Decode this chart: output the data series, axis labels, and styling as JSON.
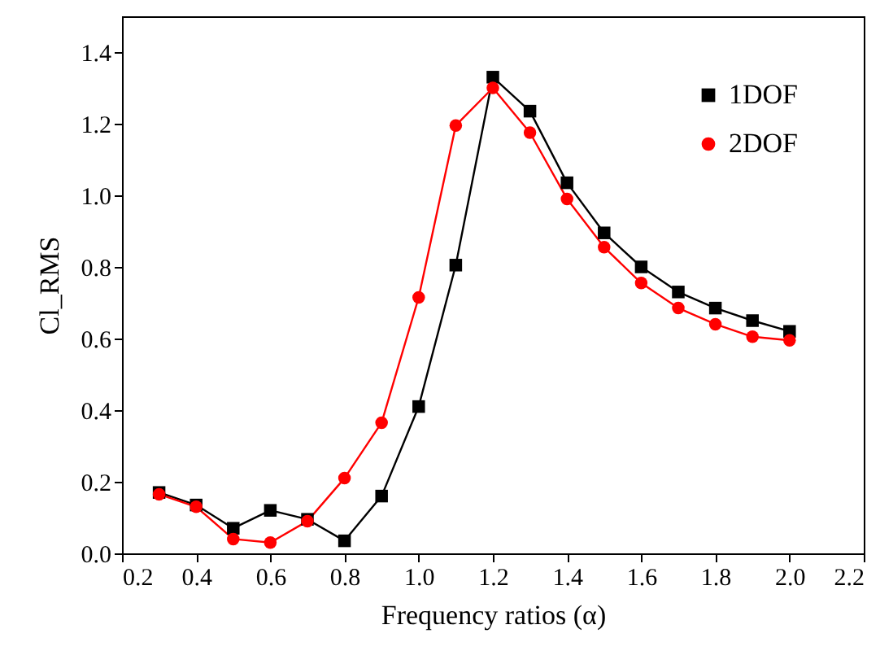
{
  "chart_data": {
    "type": "line",
    "xlabel": "Frequency ratios (α)",
    "ylabel": "Cl_RMS",
    "x": [
      0.3,
      0.4,
      0.5,
      0.6,
      0.7,
      0.8,
      0.9,
      1.0,
      1.1,
      1.2,
      1.3,
      1.4,
      1.5,
      1.6,
      1.7,
      1.8,
      1.9,
      2.0
    ],
    "series": [
      {
        "name": "1DOF",
        "color": "#000000",
        "marker": "square",
        "values": [
          0.17,
          0.135,
          0.07,
          0.12,
          0.095,
          0.035,
          0.16,
          0.41,
          0.805,
          1.33,
          1.235,
          1.035,
          0.895,
          0.8,
          0.73,
          0.685,
          0.65,
          0.62
        ]
      },
      {
        "name": "2DOF",
        "color": "#ff0000",
        "marker": "circle",
        "values": [
          0.165,
          0.13,
          0.04,
          0.03,
          0.09,
          0.21,
          0.365,
          0.715,
          1.195,
          1.3,
          1.175,
          0.99,
          0.855,
          0.755,
          0.685,
          0.64,
          0.605,
          0.595
        ]
      }
    ],
    "xlim": [
      0.2,
      2.2
    ],
    "xticks": [
      0.2,
      0.4,
      0.6,
      0.8,
      {
        "value": 1,
        "label": "1.0"
      },
      1.2,
      1.4,
      1.6,
      1.8,
      {
        "value": 2,
        "label": "2.0"
      },
      2.2
    ],
    "ylim": [
      0,
      1.5
    ],
    "yticks": [
      {
        "value": 0,
        "label": "0.0"
      },
      0.2,
      0.4,
      0.6,
      0.8,
      {
        "value": 1,
        "label": "1.0"
      },
      1.2,
      1.4
    ],
    "grid": false,
    "legend": "top right",
    "line_style": "solid"
  }
}
